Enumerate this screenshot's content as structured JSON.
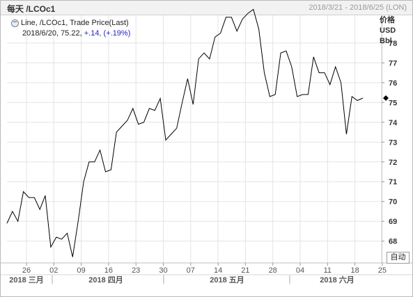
{
  "header": {
    "title": "每天 /LCOc1",
    "date_range": "2018/3/21 - 2018/6/25 (LON)"
  },
  "legend": {
    "series_label": "Line, /LCOc1, Trade Price(Last)",
    "date": "2018/6/20,",
    "value": "75.22,",
    "change": "+.14, (+.19%)"
  },
  "y_unit": [
    "价格",
    "USD",
    "Bbl"
  ],
  "auto_label": "自动",
  "colors": {
    "line": "#000000",
    "grid": "#e3e3e3",
    "change": "#2323c8"
  },
  "chart_data": {
    "type": "line",
    "ylim": [
      66.9,
      79.4
    ],
    "y_ticks": [
      68,
      69,
      70,
      71,
      72,
      73,
      74,
      75,
      76,
      77,
      78
    ],
    "x_tick_labels": [
      "26",
      "02",
      "09",
      "16",
      "23",
      "30",
      "07",
      "14",
      "21",
      "28",
      "04",
      "11",
      "18",
      "25"
    ],
    "month_labels": [
      "2018 三月",
      "2018 四月",
      "2018 五月",
      "2018 六月"
    ],
    "last_value_marker": 75.22,
    "series": [
      {
        "values": [
          68.9,
          69.5,
          69.0,
          70.5,
          70.2,
          70.2,
          69.6,
          70.3,
          67.7,
          68.2,
          68.1,
          68.4,
          67.2,
          69.0,
          71.0,
          72.0,
          72.0,
          72.6,
          71.5,
          71.6,
          73.5,
          73.8,
          74.1,
          74.7,
          73.9,
          74.0,
          74.7,
          74.6,
          75.2,
          73.1,
          73.4,
          73.7,
          75.0,
          76.2,
          74.9,
          77.2,
          77.5,
          77.2,
          78.3,
          78.5,
          79.3,
          79.3,
          78.6,
          79.2,
          79.5,
          79.7,
          78.7,
          76.5,
          75.3,
          75.4,
          77.5,
          77.6,
          76.8,
          75.3,
          75.4,
          75.4,
          77.3,
          76.5,
          76.5,
          75.9,
          76.8,
          76.0,
          73.4,
          75.3,
          75.1,
          75.22
        ]
      }
    ]
  }
}
